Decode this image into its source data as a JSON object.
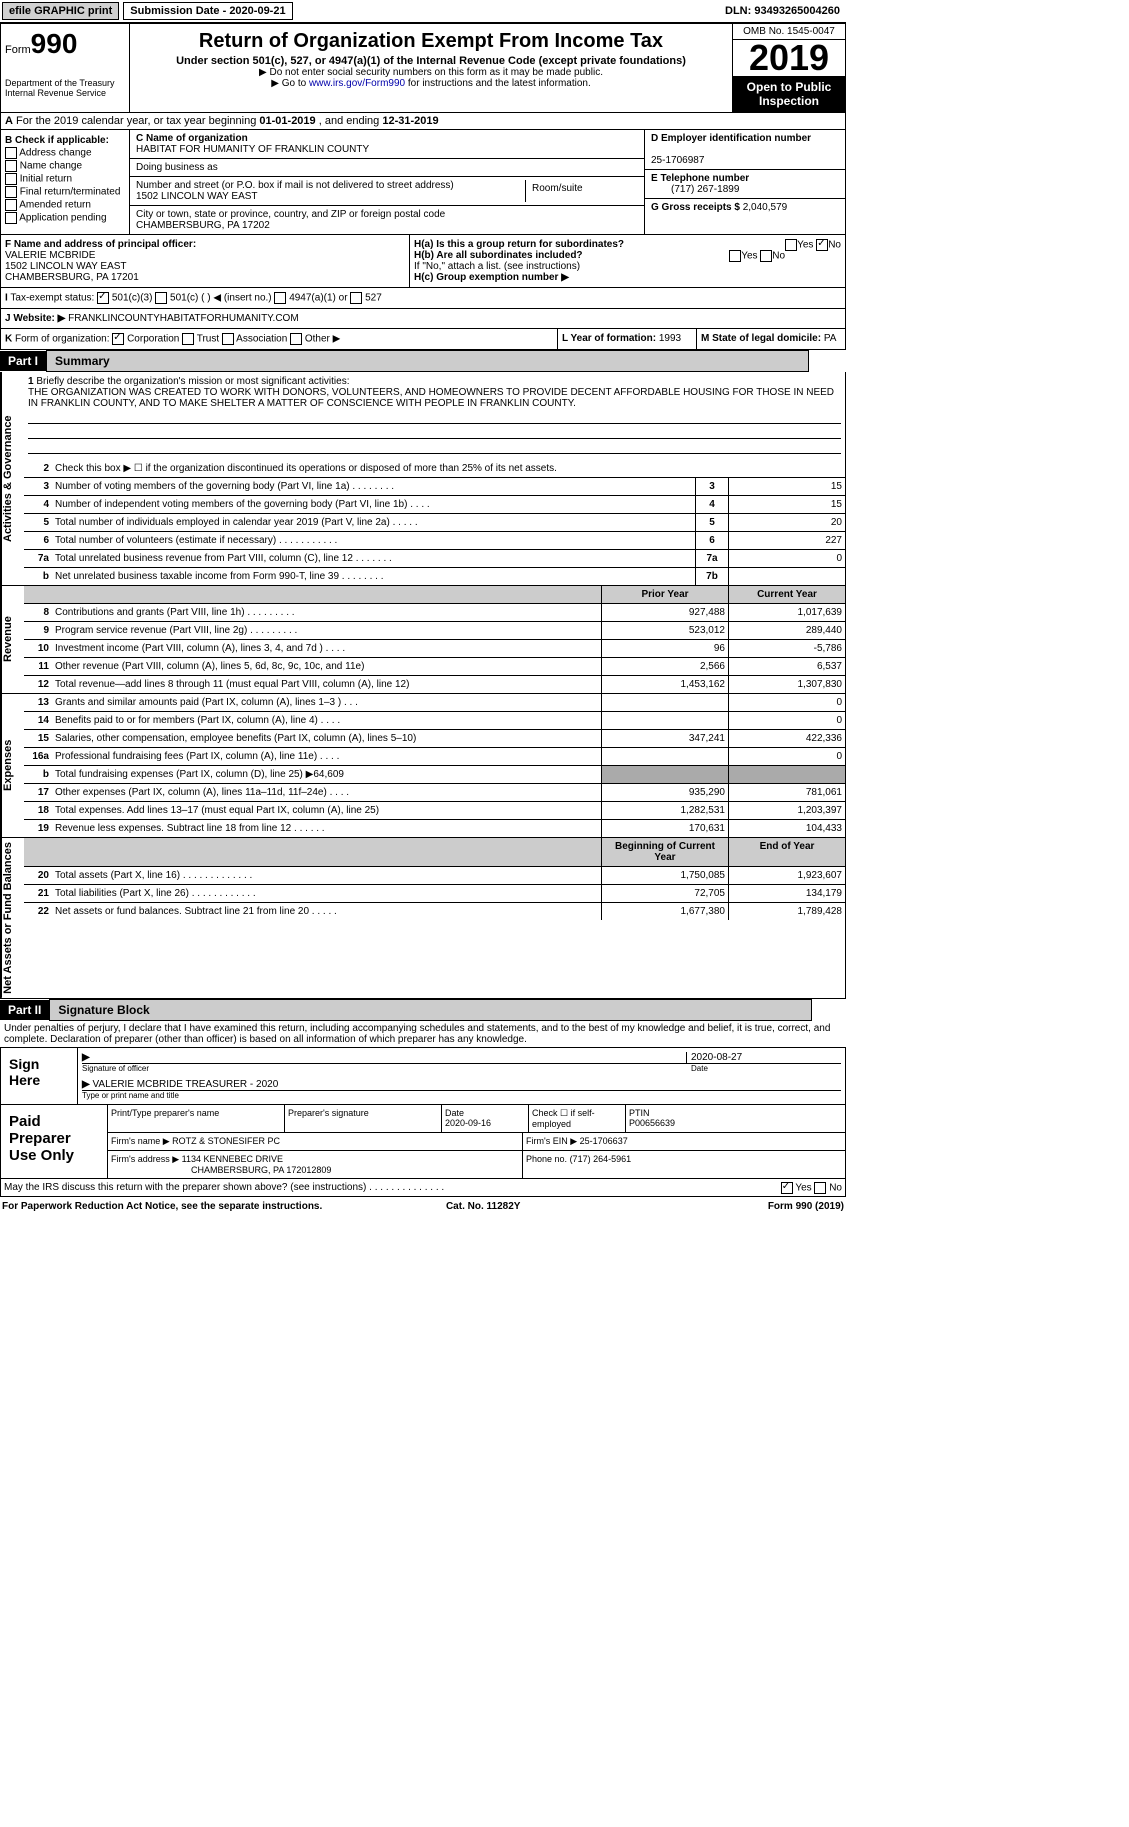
{
  "top": {
    "efile": "efile GRAPHIC print",
    "sub": "Submission Date - 2020-09-21",
    "dln": "DLN: 93493265004260"
  },
  "header": {
    "form": "Form",
    "num": "990",
    "title": "Return of Organization Exempt From Income Tax",
    "sub1": "Under section 501(c), 527, or 4947(a)(1) of the Internal Revenue Code (except private foundations)",
    "sub2": "▶ Do not enter social security numbers on this form as it may be made public.",
    "sub3": "▶ Go to ",
    "link": "www.irs.gov/Form990",
    "sub4": " for instructions and the latest information.",
    "dept": "Department of the Treasury Internal Revenue Service",
    "omb": "OMB No. 1545-0047",
    "year": "2019",
    "public": "Open to Public Inspection"
  },
  "a": {
    "prefix": "A",
    "text": " For the 2019 calendar year, or tax year beginning ",
    "d1": "01-01-2019",
    "mid": " , and ending ",
    "d2": "12-31-2019"
  },
  "b": {
    "title": "B Check if applicable:",
    "items": [
      "Address change",
      "Name change",
      "Initial return",
      "Final return/terminated",
      "Amended return",
      "Application pending"
    ]
  },
  "c": {
    "name_lbl": "C Name of organization",
    "name": "HABITAT FOR HUMANITY OF FRANKLIN COUNTY",
    "dba": "Doing business as",
    "addr_lbl": "Number and street (or P.O. box if mail is not delivered to street address)",
    "room": "Room/suite",
    "addr": "1502 LINCOLN WAY EAST",
    "city_lbl": "City or town, state or province, country, and ZIP or foreign postal code",
    "city": "CHAMBERSBURG, PA  17202"
  },
  "d": {
    "lbl": "D Employer identification number",
    "val": "25-1706987"
  },
  "e": {
    "lbl": "E Telephone number",
    "val": "(717) 267-1899"
  },
  "g": {
    "lbl": "G Gross receipts $",
    "val": "2,040,579"
  },
  "f": {
    "lbl": "F Name and address of principal officer:",
    "name": "VALERIE MCBRIDE",
    "addr1": "1502 LINCOLN WAY EAST",
    "addr2": "CHAMBERSBURG, PA  17201"
  },
  "h": {
    "a": "H(a)  Is this a group return for subordinates?",
    "b": "H(b)  Are all subordinates included?",
    "note": "If \"No,\" attach a list. (see instructions)",
    "c": "H(c)  Group exemption number ▶",
    "yes": "Yes",
    "no": "No"
  },
  "i": {
    "lbl": "I",
    "text": "Tax-exempt status:",
    "o1": "501(c)(3)",
    "o2": "501(c) (  ) ◀ (insert no.)",
    "o3": "4947(a)(1) or",
    "o4": "527"
  },
  "j": {
    "lbl": "J",
    "text": "Website: ▶",
    "val": "FRANKLINCOUNTYHABITATFORHUMANITY.COM"
  },
  "k": {
    "lbl": "K",
    "text": "Form of organization:",
    "o1": "Corporation",
    "o2": "Trust",
    "o3": "Association",
    "o4": "Other ▶"
  },
  "l": {
    "lbl": "L Year of formation:",
    "val": "1993"
  },
  "m": {
    "lbl": "M State of legal domicile:",
    "val": "PA"
  },
  "part1": "Part I",
  "summary": "Summary",
  "mission": {
    "lbl": "1",
    "prompt": "Briefly describe the organization's mission or most significant activities:",
    "text": "THE ORGANIZATION WAS CREATED TO WORK WITH DONORS, VOLUNTEERS, AND HOMEOWNERS TO PROVIDE DECENT AFFORDABLE HOUSING FOR THOSE IN NEED IN FRANKLIN COUNTY, AND TO MAKE SHELTER A MATTER OF CONSCIENCE WITH PEOPLE IN FRANKLIN COUNTY."
  },
  "q2": {
    "n": "2",
    "t": "Check this box ▶ ☐  if the organization discontinued its operations or disposed of more than 25% of its net assets."
  },
  "gov_rows": [
    {
      "n": "3",
      "t": "Number of voting members of the governing body (Part VI, line 1a)   .    .    .    .    .    .    .    .",
      "box": "3",
      "v": "15"
    },
    {
      "n": "4",
      "t": "Number of independent voting members of the governing body (Part VI, line 1b)   .    .    .    .",
      "box": "4",
      "v": "15"
    },
    {
      "n": "5",
      "t": "Total number of individuals employed in calendar year 2019 (Part V, line 2a)   .    .    .    .    .",
      "box": "5",
      "v": "20"
    },
    {
      "n": "6",
      "t": "Total number of volunteers (estimate if necessary)   .    .    .    .    .    .    .    .    .    .    .",
      "box": "6",
      "v": "227"
    },
    {
      "n": "7a",
      "t": "Total unrelated business revenue from Part VIII, column (C), line 12   .    .    .    .    .    .    .",
      "box": "7a",
      "v": "0"
    },
    {
      "n": "b",
      "t": "Net unrelated business taxable income from Form 990-T, line 39    .    .    .    .    .    .    .    .",
      "box": "7b",
      "v": ""
    }
  ],
  "side": {
    "gov": "Activities & Governance",
    "rev": "Revenue",
    "exp": "Expenses",
    "net": "Net Assets or Fund Balances"
  },
  "col_hdr": {
    "prior": "Prior Year",
    "curr": "Current Year",
    "beg": "Beginning of Current Year",
    "end": "End of Year"
  },
  "rev_rows": [
    {
      "n": "8",
      "t": "Contributions and grants (Part VIII, line 1h)   .    .    .    .    .    .    .    .    .",
      "p": "927,488",
      "c": "1,017,639"
    },
    {
      "n": "9",
      "t": "Program service revenue (Part VIII, line 2g)   .    .    .    .    .    .    .    .    .",
      "p": "523,012",
      "c": "289,440"
    },
    {
      "n": "10",
      "t": "Investment income (Part VIII, column (A), lines 3, 4, and 7d )   .    .    .    .",
      "p": "96",
      "c": "-5,786"
    },
    {
      "n": "11",
      "t": "Other revenue (Part VIII, column (A), lines 5, 6d, 8c, 9c, 10c, and 11e)",
      "p": "2,566",
      "c": "6,537"
    },
    {
      "n": "12",
      "t": "Total revenue—add lines 8 through 11 (must equal Part VIII, column (A), line 12)",
      "p": "1,453,162",
      "c": "1,307,830"
    }
  ],
  "exp_rows": [
    {
      "n": "13",
      "t": "Grants and similar amounts paid (Part IX, column (A), lines 1–3 )  .    .    .",
      "p": "",
      "c": "0"
    },
    {
      "n": "14",
      "t": "Benefits paid to or for members (Part IX, column (A), line 4)  .    .    .    .",
      "p": "",
      "c": "0"
    },
    {
      "n": "15",
      "t": "Salaries, other compensation, employee benefits (Part IX, column (A), lines 5–10)",
      "p": "347,241",
      "c": "422,336"
    },
    {
      "n": "16a",
      "t": "Professional fundraising fees (Part IX, column (A), line 11e)  .    .    .    .",
      "p": "",
      "c": "0"
    },
    {
      "n": "b",
      "t": "Total fundraising expenses (Part IX, column (D), line 25) ▶64,609",
      "p": "grey",
      "c": "grey"
    },
    {
      "n": "17",
      "t": "Other expenses (Part IX, column (A), lines 11a–11d, 11f–24e)   .    .    .    .",
      "p": "935,290",
      "c": "781,061"
    },
    {
      "n": "18",
      "t": "Total expenses. Add lines 13–17 (must equal Part IX, column (A), line 25)",
      "p": "1,282,531",
      "c": "1,203,397"
    },
    {
      "n": "19",
      "t": "Revenue less expenses. Subtract line 18 from line 12   .    .    .    .    .    .",
      "p": "170,631",
      "c": "104,433"
    }
  ],
  "net_rows": [
    {
      "n": "20",
      "t": "Total assets (Part X, line 16)  .    .    .    .    .    .    .    .    .    .    .    .    .",
      "p": "1,750,085",
      "c": "1,923,607"
    },
    {
      "n": "21",
      "t": "Total liabilities (Part X, line 26)  .    .    .    .    .    .    .    .    .    .    .    .",
      "p": "72,705",
      "c": "134,179"
    },
    {
      "n": "22",
      "t": "Net assets or fund balances. Subtract line 21 from line 20   .    .    .    .    .",
      "p": "1,677,380",
      "c": "1,789,428"
    }
  ],
  "part2": "Part II",
  "sigblock": "Signature Block",
  "perjury": "Under penalties of perjury, I declare that I have examined this return, including accompanying schedules and statements, and to the best of my knowledge and belief, it is true, correct, and complete. Declaration of preparer (other than officer) is based on all information of which preparer has any knowledge.",
  "sign": {
    "here": "Sign Here",
    "sig": "Signature of officer",
    "date": "Date",
    "dateval": "2020-08-27",
    "name": "VALERIE MCBRIDE TREASURER - 2020",
    "type": "Type or print name and title"
  },
  "prep": {
    "title": "Paid Preparer Use Only",
    "h1": "Print/Type preparer's name",
    "h2": "Preparer's signature",
    "h3": "Date",
    "h3v": "2020-09-16",
    "h4": "Check ☐ if self-employed",
    "h5": "PTIN",
    "ptin": "P00656639",
    "firm_lbl": "Firm's name  ▶",
    "firm": "ROTZ & STONESIFER PC",
    "ein_lbl": "Firm's EIN ▶",
    "ein": "25-1706637",
    "addr_lbl": "Firm's address ▶",
    "addr1": "1134 KENNEBEC DRIVE",
    "addr2": "CHAMBERSBURG, PA  172012809",
    "ph_lbl": "Phone no.",
    "ph": "(717) 264-5961"
  },
  "discuss": {
    "t": "May the IRS discuss this return with the preparer shown above? (see instructions)    .    .    .    .    .    .    .    .    .    .    .    .    .    .",
    "yes": "Yes",
    "no": "No"
  },
  "footer": {
    "l": "For Paperwork Reduction Act Notice, see the separate instructions.",
    "c": "Cat. No. 11282Y",
    "r": "Form 990 (2019)"
  }
}
